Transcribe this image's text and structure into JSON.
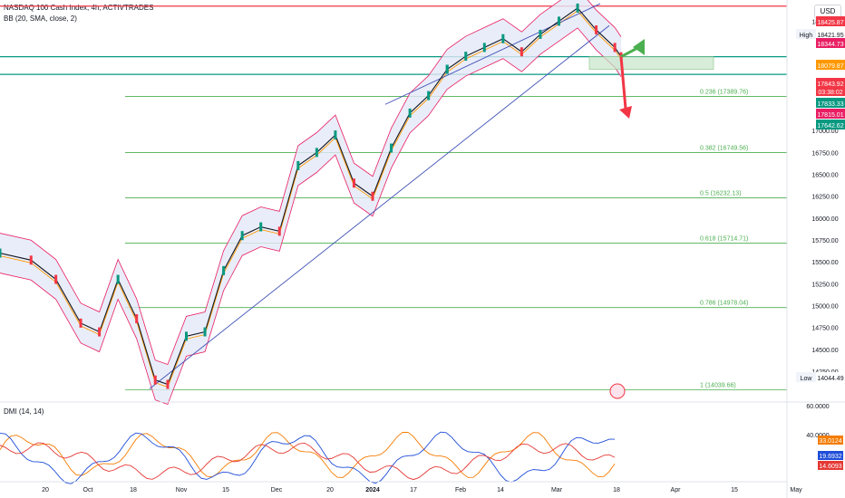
{
  "header": {
    "symbol_line": "NASDAQ 100 Cash Index, 4h, ACTIVTRADES",
    "indicator_line": "BB (20, SMA, close, 2)",
    "currency": "USD"
  },
  "sub_pane": {
    "title": "DMI (14, 14)",
    "y_ticks": [
      {
        "value": 60,
        "label": "60.0000"
      },
      {
        "value": 40,
        "label": "40.0000"
      }
    ],
    "badges": [
      {
        "value": 33.0124,
        "label": "33.0124",
        "color": "#f57c00"
      },
      {
        "value": 19.6932,
        "label": "19.6932",
        "color": "#1e4dd8"
      },
      {
        "value": 14.6093,
        "label": "14.6093",
        "color": "#e53935"
      }
    ]
  },
  "chart_data": {
    "type": "line",
    "title": "NASDAQ 100 Cash Index, 4h, ACTIVTRADES",
    "x_axis": {
      "labels": [
        "20",
        "Oct",
        "18",
        "Nov",
        "15",
        "Dec",
        "20",
        "2024",
        "17",
        "Feb",
        "14",
        "Mar",
        "18",
        "Apr",
        "15",
        "May"
      ]
    },
    "y_axis": {
      "ticks": [
        "18250.00",
        "17000.00",
        "16750.00",
        "16500.00",
        "16250.00",
        "16000.00",
        "15750.00",
        "15500.00",
        "15250.00",
        "15000.00",
        "14750.00",
        "14500.00",
        "14250.00"
      ],
      "tick_values": [
        18250,
        17000,
        16750,
        16500,
        16250,
        16000,
        15750,
        15500,
        15250,
        15000,
        14750,
        14500,
        14250
      ],
      "range": [
        13940,
        18430
      ]
    },
    "price_labels": [
      {
        "label": "18425.87",
        "value": 18425.87,
        "color": "#f23645"
      },
      {
        "label": "18421.95",
        "value": 18421.95,
        "color": "#ffffff",
        "tag": "High"
      },
      {
        "label": "18344.73",
        "value": 18344.73,
        "color": "#e91e63"
      },
      {
        "label": "18079.87",
        "value": 18079.87,
        "color": "#ff9800"
      },
      {
        "label": "17843.92",
        "value": 17843.92,
        "color": "#f23645",
        "sub": "03:38:02"
      },
      {
        "label": "17833.33",
        "value": 17833.33,
        "color": "#089981"
      },
      {
        "label": "17815.01",
        "value": 17815.01,
        "color": "#e91e63"
      },
      {
        "label": "17642.62",
        "value": 17642.62,
        "color": "#089981"
      },
      {
        "label": "14044.49",
        "value": 14044.49,
        "color": "#ffffff",
        "tag": "Low"
      }
    ],
    "horizontal_lines": [
      {
        "value": 18421.95,
        "color": "#f23645",
        "label": ""
      },
      {
        "value": 17843.92,
        "color": "#089981",
        "label": ""
      },
      {
        "value": 17642.62,
        "color": "#089981",
        "label": ""
      }
    ],
    "fibonacci": [
      {
        "ratio": 0.236,
        "value": 17389.76,
        "label": "0.236 (17389.76)"
      },
      {
        "ratio": 0.382,
        "value": 16749.56,
        "label": "0.382 (16749.56)"
      },
      {
        "ratio": 0.5,
        "value": 16232.13,
        "label": "0.5 (16232.13)"
      },
      {
        "ratio": 0.618,
        "value": 15714.71,
        "label": "0.618 (15714.71)"
      },
      {
        "ratio": 0.786,
        "value": 14978.04,
        "label": "0.786 (14978.04)"
      },
      {
        "ratio": 1,
        "value": 14039.66,
        "label": "1 (14039.66)"
      }
    ],
    "series": [
      {
        "name": "",
        "color": "#131722",
        "x": [
          0,
          0.05,
          0.09,
          0.13,
          0.16,
          0.19,
          0.22,
          0.25,
          0.27,
          0.3,
          0.33,
          0.36,
          0.39,
          0.42,
          0.45,
          0.48,
          0.51,
          0.54,
          0.57,
          0.6,
          0.63,
          0.66,
          0.69,
          0.72
        ],
        "values": [
          15600,
          15520,
          15300,
          14800,
          14700,
          15300,
          14850,
          14150,
          14100,
          14650,
          14700,
          15400,
          15800,
          15900,
          15850,
          16600,
          16750,
          16950,
          16400,
          16250,
          16800,
          17200,
          17400,
          17700
        ]
      },
      {
        "name": "",
        "color": "#131722",
        "x": [
          0.72,
          0.75,
          0.78,
          0.81,
          0.84,
          0.87,
          0.9,
          0.93,
          0.96,
          0.99,
          1.0
        ],
        "values": [
          17700,
          17850,
          17950,
          18050,
          17900,
          18100,
          18250,
          18400,
          18150,
          17950,
          17843.92
        ]
      }
    ],
    "bollinger": {
      "period": 20,
      "type": "SMA",
      "source": "close",
      "stddev": 2
    },
    "annotations": [
      {
        "type": "arrow",
        "direction": "up",
        "color": "#4caf50"
      },
      {
        "type": "arrow",
        "direction": "down",
        "color": "#f23645"
      },
      {
        "type": "box",
        "from_value": 17843.92,
        "to_value": 17700,
        "color": "#c8e6c9"
      }
    ],
    "grid": false
  }
}
